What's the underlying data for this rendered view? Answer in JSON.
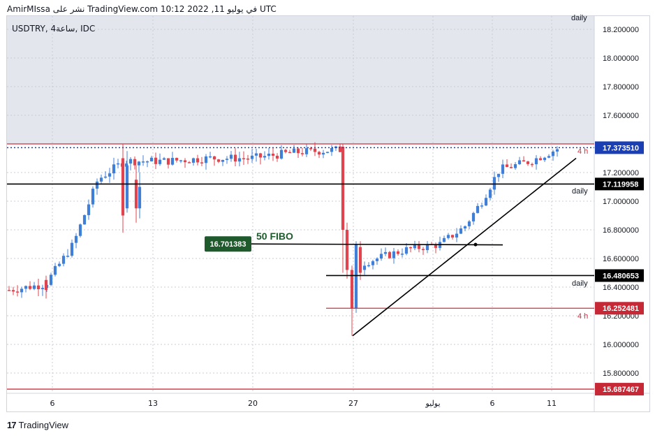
{
  "header": {
    "publish_line": "AmirMIssa نشر على TradingView.com في يوليو 11, 2022 10:12 UTC"
  },
  "ticker_label": "USDTRY, 4ساعة, IDC",
  "footer": {
    "brand": "TradingView"
  },
  "colors": {
    "bg_shade": "#e4e6ee",
    "up": "#3f7fd8",
    "down": "#e0444f",
    "black_line": "#000000",
    "red_line": "#d32f3f",
    "blue_dotted": "#1a3fb4",
    "fibo_label_bg": "#1e5a2b"
  },
  "chart_data": {
    "type": "candlestick",
    "symbol": "USDTRY",
    "timeframe": "4h",
    "ylim": [
      15.68,
      18.32
    ],
    "y_ticks": [
      "18.200000",
      "18.000000",
      "17.800000",
      "17.600000",
      "17.200000",
      "17.000000",
      "16.800000",
      "16.600000",
      "16.400000",
      "16.200000",
      "16.000000",
      "15.800000"
    ],
    "x_labels": [
      "6",
      "13",
      "20",
      "27",
      "يوليو",
      "6",
      "11"
    ],
    "price_tags": [
      {
        "value": "17.373510",
        "kind": "current"
      },
      {
        "value": "17.119958",
        "kind": "black"
      },
      {
        "value": "16.480653",
        "kind": "black"
      },
      {
        "value": "16.252481",
        "kind": "red"
      },
      {
        "value": "15.687467",
        "kind": "red"
      }
    ],
    "horizontal_levels": [
      {
        "price": 17.4,
        "color": "red",
        "label": "4 h"
      },
      {
        "price": 17.37351,
        "color": "blue-dotted",
        "label": ""
      },
      {
        "price": 17.119958,
        "color": "black",
        "label": "daily"
      },
      {
        "price": 16.480653,
        "color": "black",
        "label": "daily"
      },
      {
        "price": 16.252481,
        "color": "red",
        "label": "4 h"
      },
      {
        "price": 15.687467,
        "color": "red",
        "label": ""
      }
    ],
    "partial_top_label": "daily",
    "fibo": {
      "label": "50 FIBO",
      "value": "16.701383"
    },
    "trendline": {
      "from": {
        "date": "Jun 27",
        "price": 16.06
      },
      "to": {
        "date": "Jul 13",
        "price": 17.3
      }
    }
  }
}
